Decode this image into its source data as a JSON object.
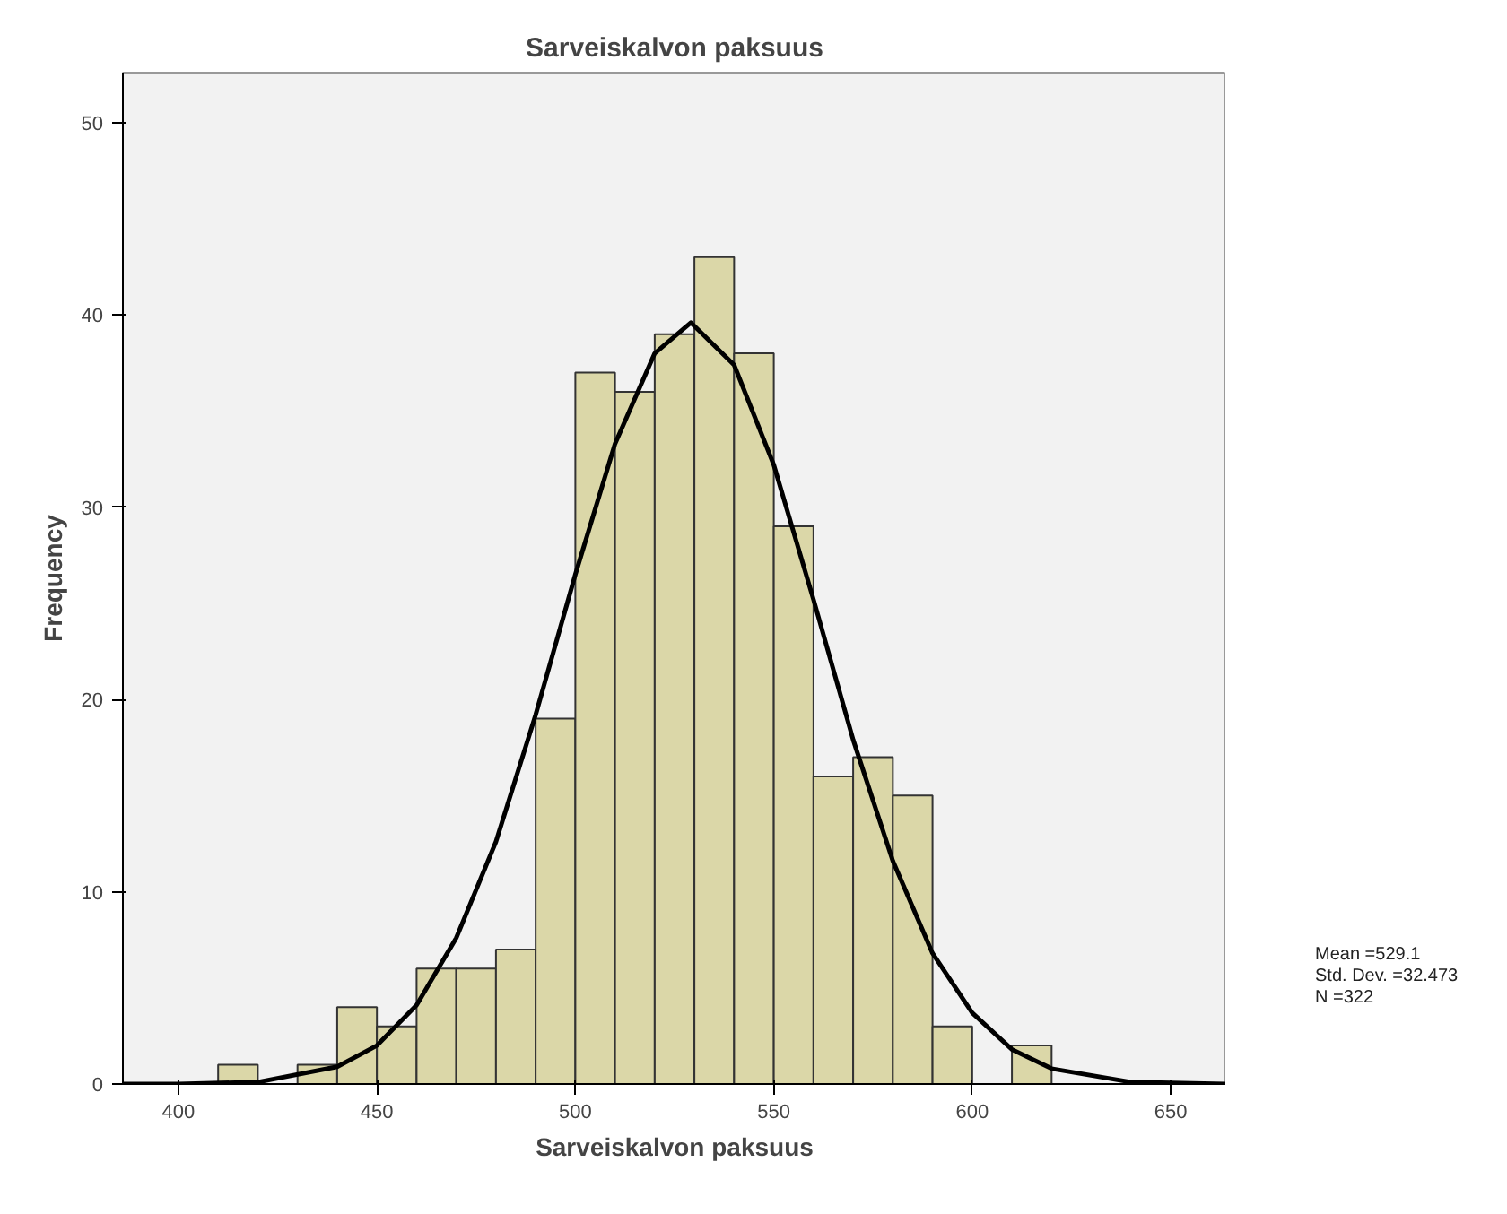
{
  "chart_data": {
    "type": "histogram",
    "title": "Sarveiskalvon paksuus",
    "xlabel": "Sarveiskalvon paksuus",
    "ylabel": "Frequency",
    "bins": [
      410,
      420,
      430,
      440,
      450,
      460,
      470,
      480,
      490,
      500,
      510,
      520,
      530,
      540,
      550,
      560,
      570,
      580,
      590,
      600,
      610,
      620
    ],
    "values": [
      1,
      0,
      1,
      4,
      3,
      6,
      6,
      7,
      19,
      37,
      36,
      39,
      43,
      38,
      29,
      16,
      17,
      15,
      3,
      0,
      2
    ],
    "color": "#dbd7a8",
    "series": [
      {
        "type": "line",
        "color": "#000000",
        "x": [
          386,
          400,
          420,
          440,
          450,
          460,
          470,
          480,
          490,
          500,
          510,
          520,
          529.1,
          540,
          550,
          560,
          570,
          580,
          590,
          600,
          610,
          620,
          640,
          664
        ],
        "values": [
          0,
          0,
          0.1,
          0.9,
          2,
          4.1,
          7.6,
          12.6,
          19.2,
          26.5,
          33.3,
          38,
          39.6,
          37.4,
          32.2,
          25.2,
          17.9,
          11.6,
          6.8,
          3.7,
          1.8,
          0.8,
          0.1,
          0
        ]
      }
    ],
    "xlim": [
      386,
      664
    ],
    "ylim": [
      0,
      52.6
    ],
    "xticks": [
      400,
      450,
      500,
      550,
      600,
      650
    ],
    "yticks": [
      0,
      10,
      20,
      30,
      40,
      50
    ],
    "grid": false,
    "annotations": [
      "Mean =529.1",
      "Std. Dev. =32.473",
      "N =322"
    ]
  }
}
